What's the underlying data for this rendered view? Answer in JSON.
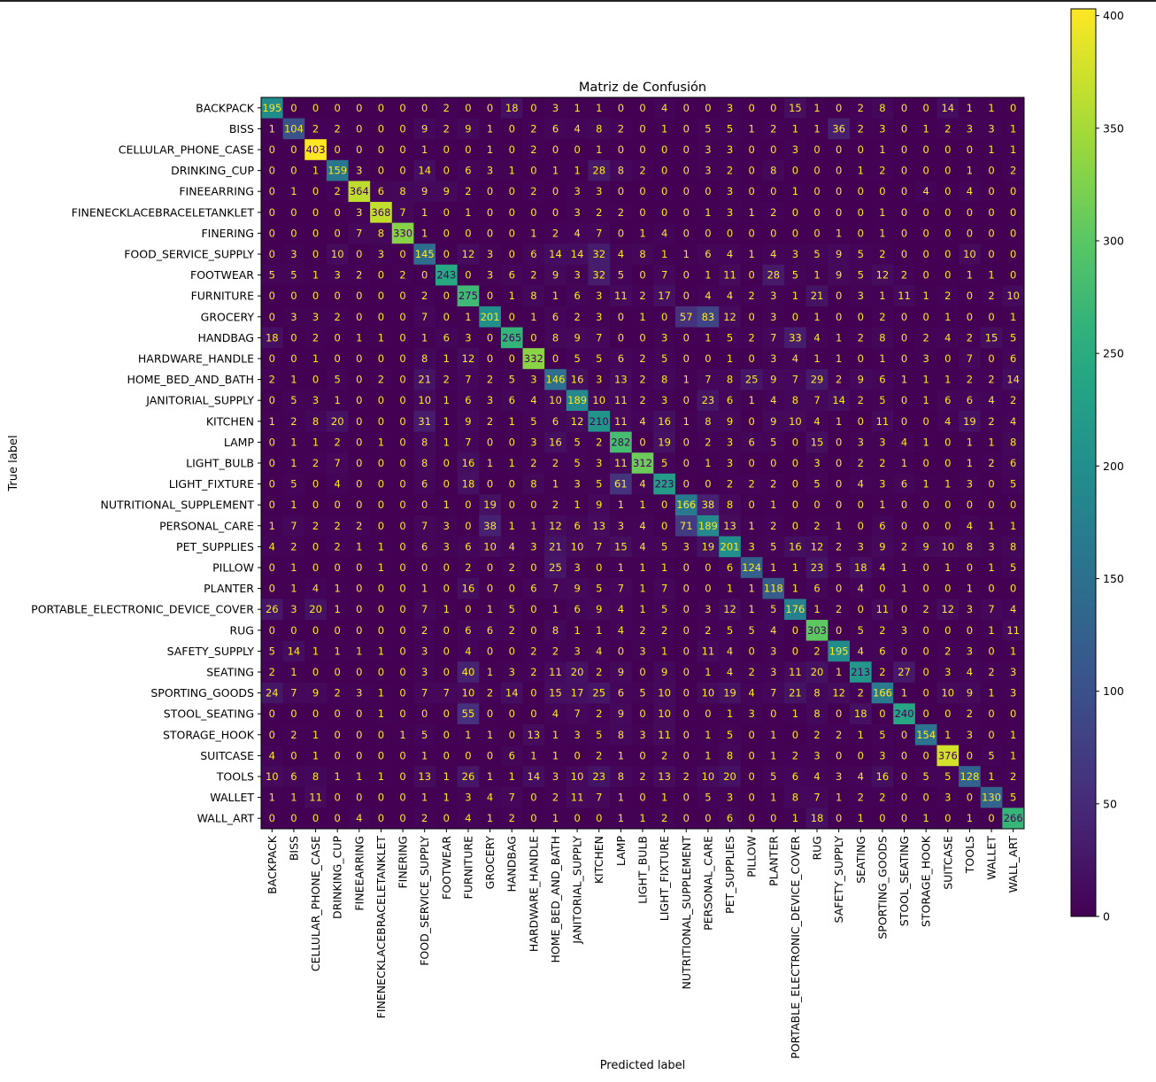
{
  "chart_data": {
    "type": "heatmap",
    "title": "Matriz de Confusión",
    "xlabel": "Predicted label",
    "ylabel": "True label",
    "colormap": "viridis",
    "colorbar": {
      "min": 0,
      "max": 403,
      "ticks": [
        0,
        50,
        100,
        150,
        200,
        250,
        300,
        350,
        400
      ]
    },
    "labels": [
      "BACKPACK",
      "BISS",
      "CELLULAR_PHONE_CASE",
      "DRINKING_CUP",
      "FINEEARRING",
      "FINENECKLACEBRACELETANKLET",
      "FINERING",
      "FOOD_SERVICE_SUPPLY",
      "FOOTWEAR",
      "FURNITURE",
      "GROCERY",
      "HANDBAG",
      "HARDWARE_HANDLE",
      "HOME_BED_AND_BATH",
      "JANITORIAL_SUPPLY",
      "KITCHEN",
      "LAMP",
      "LIGHT_BULB",
      "LIGHT_FIXTURE",
      "NUTRITIONAL_SUPPLEMENT",
      "PERSONAL_CARE",
      "PET_SUPPLIES",
      "PILLOW",
      "PLANTER",
      "PORTABLE_ELECTRONIC_DEVICE_COVER",
      "RUG",
      "SAFETY_SUPPLY",
      "SEATING",
      "SPORTING_GOODS",
      "STOOL_SEATING",
      "STORAGE_HOOK",
      "SUITCASE",
      "TOOLS",
      "WALLET",
      "WALL_ART"
    ],
    "matrix": [
      [
        195,
        0,
        0,
        0,
        0,
        0,
        0,
        0,
        2,
        0,
        0,
        18,
        0,
        3,
        1,
        1,
        0,
        0,
        4,
        0,
        0,
        3,
        0,
        0,
        15,
        1,
        0,
        2,
        8,
        0,
        0,
        14,
        1,
        1,
        0
      ],
      [
        1,
        104,
        2,
        2,
        0,
        0,
        0,
        9,
        2,
        9,
        1,
        0,
        2,
        6,
        4,
        8,
        2,
        0,
        1,
        0,
        5,
        5,
        1,
        2,
        1,
        1,
        36,
        2,
        3,
        0,
        1,
        2,
        3,
        3,
        1
      ],
      [
        0,
        0,
        403,
        0,
        0,
        0,
        0,
        1,
        0,
        0,
        1,
        0,
        2,
        0,
        0,
        1,
        0,
        0,
        0,
        0,
        3,
        3,
        0,
        0,
        3,
        0,
        0,
        0,
        1,
        0,
        0,
        0,
        0,
        1,
        1
      ],
      [
        0,
        0,
        1,
        159,
        3,
        0,
        0,
        14,
        0,
        6,
        3,
        1,
        0,
        1,
        1,
        28,
        8,
        2,
        0,
        0,
        3,
        2,
        0,
        8,
        0,
        0,
        0,
        1,
        2,
        0,
        0,
        0,
        1,
        0,
        2
      ],
      [
        0,
        1,
        0,
        2,
        364,
        6,
        8,
        9,
        9,
        2,
        0,
        0,
        2,
        0,
        3,
        3,
        0,
        0,
        0,
        0,
        0,
        3,
        0,
        0,
        1,
        0,
        0,
        0,
        0,
        0,
        4,
        0,
        4,
        0,
        0
      ],
      [
        0,
        0,
        0,
        0,
        3,
        368,
        7,
        1,
        0,
        1,
        0,
        0,
        0,
        0,
        3,
        2,
        2,
        0,
        0,
        0,
        1,
        3,
        1,
        2,
        0,
        0,
        0,
        0,
        1,
        0,
        0,
        0,
        0,
        0,
        0
      ],
      [
        0,
        0,
        0,
        0,
        7,
        8,
        330,
        1,
        0,
        0,
        0,
        0,
        1,
        2,
        4,
        7,
        0,
        1,
        4,
        0,
        0,
        0,
        0,
        0,
        0,
        0,
        1,
        0,
        1,
        0,
        0,
        0,
        0,
        0,
        0
      ],
      [
        0,
        3,
        0,
        10,
        0,
        3,
        0,
        145,
        0,
        12,
        3,
        0,
        6,
        14,
        14,
        32,
        4,
        8,
        1,
        1,
        6,
        4,
        1,
        4,
        3,
        5,
        9,
        5,
        2,
        0,
        0,
        0,
        10,
        0,
        0
      ],
      [
        5,
        5,
        1,
        3,
        2,
        0,
        2,
        0,
        243,
        0,
        3,
        6,
        2,
        9,
        3,
        32,
        5,
        0,
        7,
        0,
        1,
        11,
        0,
        28,
        5,
        1,
        9,
        5,
        12,
        2,
        0,
        0,
        1,
        1,
        0
      ],
      [
        0,
        0,
        0,
        0,
        0,
        0,
        0,
        2,
        0,
        275,
        0,
        1,
        8,
        1,
        6,
        3,
        11,
        2,
        17,
        0,
        4,
        4,
        2,
        3,
        1,
        21,
        0,
        3,
        1,
        11,
        1,
        2,
        0,
        2,
        10
      ],
      [
        0,
        3,
        3,
        2,
        0,
        0,
        0,
        7,
        0,
        1,
        201,
        0,
        1,
        6,
        2,
        3,
        0,
        1,
        0,
        57,
        83,
        12,
        0,
        3,
        0,
        1,
        0,
        0,
        2,
        0,
        0,
        1,
        0,
        0,
        1
      ],
      [
        18,
        0,
        2,
        0,
        1,
        1,
        0,
        1,
        6,
        3,
        0,
        265,
        0,
        8,
        9,
        7,
        0,
        0,
        3,
        0,
        1,
        5,
        2,
        7,
        33,
        4,
        1,
        2,
        8,
        0,
        2,
        4,
        2,
        15,
        5
      ],
      [
        0,
        0,
        1,
        0,
        0,
        0,
        0,
        8,
        1,
        12,
        0,
        0,
        332,
        0,
        5,
        5,
        6,
        2,
        5,
        0,
        0,
        1,
        0,
        3,
        4,
        1,
        1,
        0,
        1,
        0,
        3,
        0,
        7,
        0,
        6
      ],
      [
        2,
        1,
        0,
        5,
        0,
        2,
        0,
        21,
        2,
        7,
        2,
        5,
        3,
        146,
        16,
        3,
        13,
        2,
        8,
        1,
        7,
        8,
        25,
        9,
        7,
        29,
        2,
        9,
        6,
        1,
        1,
        1,
        2,
        2,
        14
      ],
      [
        0,
        5,
        3,
        1,
        0,
        0,
        0,
        10,
        1,
        6,
        3,
        6,
        4,
        10,
        189,
        10,
        11,
        2,
        3,
        0,
        23,
        6,
        1,
        4,
        8,
        7,
        14,
        2,
        5,
        0,
        1,
        6,
        6,
        4,
        2
      ],
      [
        1,
        2,
        8,
        20,
        0,
        0,
        0,
        31,
        1,
        9,
        2,
        1,
        5,
        6,
        12,
        210,
        11,
        4,
        16,
        1,
        8,
        9,
        0,
        9,
        10,
        4,
        1,
        0,
        11,
        0,
        0,
        4,
        19,
        2,
        4
      ],
      [
        0,
        1,
        1,
        2,
        0,
        1,
        0,
        8,
        1,
        7,
        0,
        0,
        3,
        16,
        5,
        2,
        282,
        0,
        19,
        0,
        2,
        3,
        6,
        5,
        0,
        15,
        0,
        3,
        3,
        4,
        1,
        0,
        1,
        1,
        8
      ],
      [
        0,
        1,
        2,
        7,
        0,
        0,
        0,
        8,
        0,
        16,
        1,
        1,
        2,
        2,
        5,
        3,
        11,
        312,
        5,
        0,
        1,
        3,
        0,
        0,
        0,
        3,
        0,
        2,
        2,
        1,
        0,
        0,
        1,
        2,
        6
      ],
      [
        0,
        5,
        0,
        4,
        0,
        0,
        0,
        6,
        0,
        18,
        0,
        0,
        8,
        1,
        3,
        5,
        61,
        4,
        223,
        0,
        0,
        2,
        2,
        2,
        0,
        5,
        0,
        4,
        3,
        6,
        1,
        1,
        3,
        0,
        5
      ],
      [
        0,
        1,
        0,
        0,
        0,
        0,
        0,
        0,
        1,
        0,
        19,
        0,
        0,
        2,
        1,
        9,
        1,
        1,
        0,
        166,
        38,
        8,
        0,
        1,
        0,
        0,
        0,
        0,
        1,
        0,
        0,
        0,
        0,
        0,
        0
      ],
      [
        1,
        7,
        2,
        2,
        2,
        0,
        0,
        7,
        3,
        0,
        38,
        1,
        1,
        12,
        6,
        13,
        3,
        4,
        0,
        71,
        189,
        13,
        1,
        2,
        0,
        2,
        1,
        0,
        6,
        0,
        0,
        0,
        4,
        1,
        1
      ],
      [
        4,
        2,
        0,
        2,
        1,
        1,
        0,
        6,
        3,
        6,
        10,
        4,
        3,
        21,
        10,
        7,
        15,
        4,
        5,
        3,
        19,
        201,
        3,
        5,
        16,
        12,
        2,
        3,
        9,
        2,
        9,
        10,
        8,
        3,
        8
      ],
      [
        0,
        1,
        0,
        0,
        0,
        1,
        0,
        0,
        0,
        2,
        0,
        2,
        0,
        25,
        3,
        0,
        1,
        1,
        1,
        0,
        0,
        6,
        124,
        1,
        1,
        23,
        5,
        18,
        4,
        1,
        0,
        1,
        0,
        1,
        5
      ],
      [
        0,
        1,
        4,
        1,
        0,
        0,
        0,
        1,
        0,
        16,
        0,
        0,
        6,
        7,
        9,
        5,
        7,
        1,
        7,
        0,
        0,
        1,
        1,
        118,
        1,
        6,
        0,
        4,
        0,
        1,
        0,
        0,
        1,
        0,
        0
      ],
      [
        26,
        3,
        20,
        1,
        0,
        0,
        0,
        7,
        1,
        0,
        1,
        5,
        0,
        1,
        6,
        9,
        4,
        1,
        5,
        0,
        3,
        12,
        1,
        5,
        176,
        1,
        2,
        0,
        11,
        0,
        2,
        12,
        3,
        7,
        4
      ],
      [
        0,
        0,
        0,
        0,
        0,
        0,
        0,
        2,
        0,
        6,
        6,
        2,
        0,
        8,
        1,
        1,
        4,
        2,
        2,
        0,
        2,
        5,
        5,
        4,
        0,
        303,
        0,
        5,
        2,
        3,
        0,
        0,
        0,
        1,
        11
      ],
      [
        5,
        14,
        1,
        1,
        1,
        1,
        0,
        3,
        0,
        4,
        0,
        0,
        2,
        2,
        3,
        4,
        0,
        3,
        1,
        0,
        11,
        4,
        0,
        3,
        0,
        2,
        195,
        4,
        6,
        0,
        0,
        2,
        3,
        0,
        1
      ],
      [
        2,
        1,
        0,
        0,
        0,
        0,
        0,
        3,
        0,
        40,
        1,
        3,
        2,
        11,
        20,
        2,
        9,
        0,
        9,
        0,
        1,
        4,
        2,
        3,
        11,
        20,
        1,
        213,
        2,
        27,
        0,
        3,
        4,
        2,
        3
      ],
      [
        24,
        7,
        9,
        2,
        3,
        1,
        0,
        7,
        7,
        10,
        2,
        14,
        0,
        15,
        17,
        25,
        6,
        5,
        10,
        0,
        10,
        19,
        4,
        7,
        21,
        8,
        12,
        2,
        166,
        1,
        0,
        10,
        9,
        1,
        3
      ],
      [
        0,
        0,
        0,
        0,
        0,
        1,
        0,
        0,
        0,
        55,
        0,
        0,
        0,
        4,
        7,
        2,
        9,
        0,
        10,
        0,
        0,
        1,
        3,
        0,
        1,
        8,
        0,
        18,
        0,
        240,
        0,
        0,
        2,
        0,
        0
      ],
      [
        0,
        2,
        1,
        0,
        0,
        0,
        1,
        5,
        0,
        1,
        1,
        0,
        13,
        1,
        3,
        5,
        8,
        3,
        11,
        0,
        1,
        5,
        0,
        1,
        0,
        2,
        2,
        1,
        5,
        0,
        154,
        1,
        3,
        0,
        1
      ],
      [
        4,
        0,
        1,
        0,
        0,
        0,
        0,
        1,
        0,
        0,
        0,
        6,
        1,
        1,
        0,
        2,
        1,
        0,
        2,
        0,
        1,
        8,
        0,
        1,
        2,
        3,
        0,
        0,
        3,
        0,
        0,
        376,
        0,
        5,
        1
      ],
      [
        10,
        6,
        8,
        1,
        1,
        1,
        0,
        13,
        1,
        26,
        1,
        1,
        14,
        3,
        10,
        23,
        8,
        2,
        13,
        2,
        10,
        20,
        0,
        5,
        6,
        4,
        3,
        4,
        16,
        0,
        5,
        5,
        128,
        1,
        2
      ],
      [
        1,
        1,
        11,
        0,
        0,
        0,
        0,
        1,
        1,
        3,
        4,
        7,
        0,
        2,
        11,
        7,
        1,
        0,
        1,
        0,
        5,
        3,
        0,
        1,
        8,
        7,
        1,
        2,
        2,
        0,
        0,
        3,
        0,
        130,
        5
      ],
      [
        0,
        0,
        0,
        0,
        4,
        0,
        0,
        2,
        0,
        4,
        1,
        2,
        0,
        1,
        0,
        0,
        1,
        1,
        2,
        0,
        0,
        6,
        0,
        0,
        1,
        18,
        0,
        1,
        0,
        0,
        1,
        0,
        1,
        0,
        266
      ]
    ]
  }
}
